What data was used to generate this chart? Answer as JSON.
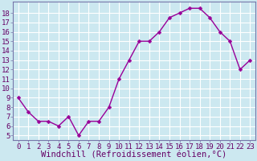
{
  "x": [
    0,
    1,
    2,
    3,
    4,
    5,
    6,
    7,
    8,
    9,
    10,
    11,
    12,
    13,
    14,
    15,
    16,
    17,
    18,
    19,
    20,
    21,
    22,
    23
  ],
  "y": [
    9,
    7.5,
    6.5,
    6.5,
    6,
    7,
    5,
    6.5,
    6.5,
    8,
    11,
    13,
    15,
    15,
    16,
    17.5,
    18,
    18.5,
    18.5,
    17.5,
    16,
    15,
    12,
    13
  ],
  "line_color": "#990099",
  "marker_color": "#990099",
  "bg_color": "#cce8f0",
  "grid_color": "#ffffff",
  "axis_color": "#7777aa",
  "xlabel": "Windchill (Refroidissement éolien,°C)",
  "xlim": [
    -0.5,
    23.5
  ],
  "ylim": [
    4.5,
    19.2
  ],
  "yticks": [
    5,
    6,
    7,
    8,
    9,
    10,
    11,
    12,
    13,
    14,
    15,
    16,
    17,
    18
  ],
  "xticks": [
    0,
    1,
    2,
    3,
    4,
    5,
    6,
    7,
    8,
    9,
    10,
    11,
    12,
    13,
    14,
    15,
    16,
    17,
    18,
    19,
    20,
    21,
    22,
    23
  ],
  "tick_label_fontsize": 6.5,
  "xlabel_fontsize": 7.5,
  "marker_size": 2.5,
  "line_width": 1.0
}
